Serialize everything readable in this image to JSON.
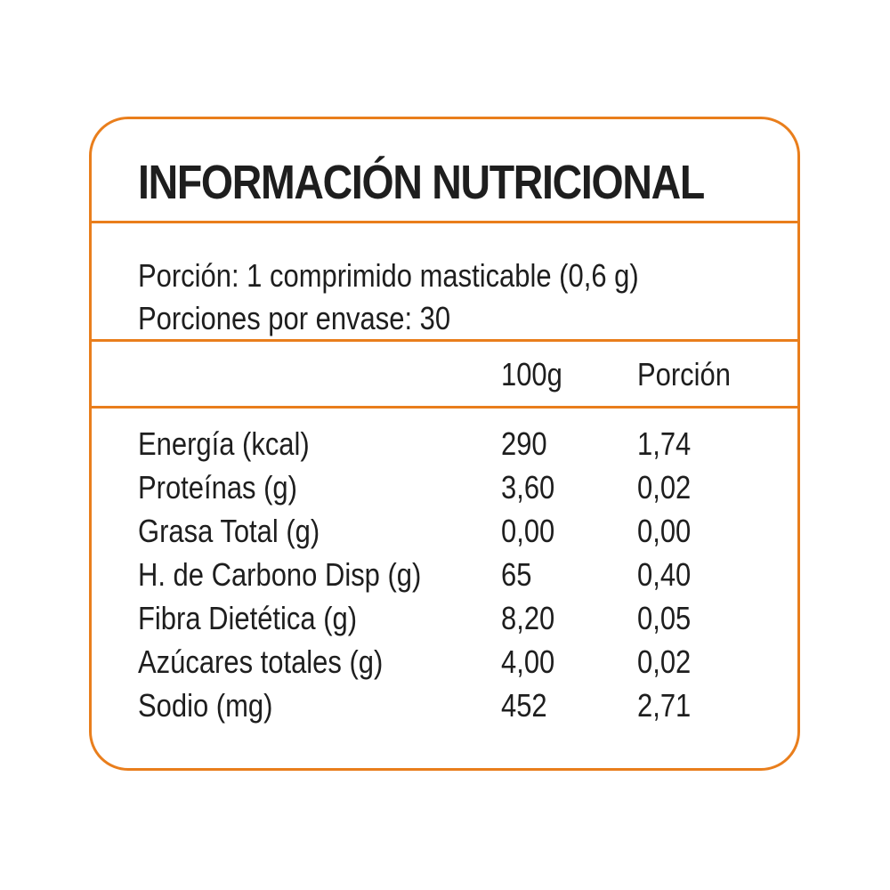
{
  "colors": {
    "border": "#e97e1c",
    "text": "#1e1e1e"
  },
  "label": {
    "title": "INFORMACIÓN NUTRICIONAL",
    "serving_size": "Porción: 1 comprimido masticable (0,6 g)",
    "servings_per_container": "Porciones por envase: 30",
    "columns": [
      "100g",
      "Porción"
    ],
    "rows": [
      {
        "name": "Energía (kcal)",
        "per100g": "290",
        "perServing": "1,74"
      },
      {
        "name": "Proteínas (g)",
        "per100g": "3,60",
        "perServing": "0,02"
      },
      {
        "name": "Grasa Total (g)",
        "per100g": "0,00",
        "perServing": "0,00"
      },
      {
        "name": "H. de Carbono Disp (g)",
        "per100g": "65",
        "perServing": "0,40"
      },
      {
        "name": "Fibra Dietética (g)",
        "per100g": "8,20",
        "perServing": "0,05"
      },
      {
        "name": "Azúcares totales (g)",
        "per100g": "4,00",
        "perServing": "0,02"
      },
      {
        "name": "Sodio (mg)",
        "per100g": "452",
        "perServing": "2,71"
      }
    ]
  }
}
